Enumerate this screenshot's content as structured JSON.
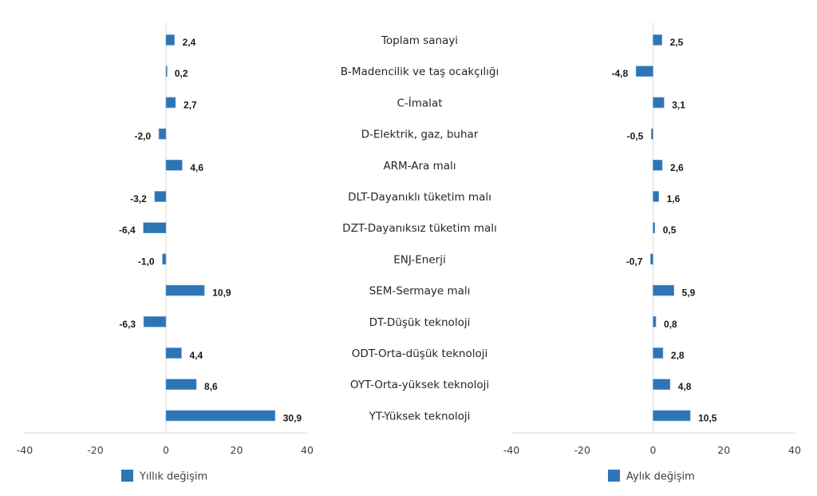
{
  "chart_data": [
    {
      "type": "bar",
      "orientation": "horizontal",
      "legend": "Yıllık değişim",
      "legend_position": "bottom",
      "categories": [
        "Toplam sanayi",
        "B-Madencilik ve taş ocakçılığı",
        "C-İmalat",
        "D-Elektrik, gaz, buhar",
        "ARM-Ara malı",
        "DLT-Dayanıklı tüketim malı",
        "DZT-Dayanıksız tüketim malı",
        "ENJ-Enerji",
        "SEM-Sermaye malı",
        "DT-Düşük teknoloji",
        "ODT-Orta-düşük teknoloji",
        "OYT-Orta-yüksek teknoloji",
        "YT-Yüksek teknoloji"
      ],
      "values": [
        2.4,
        0.2,
        2.7,
        -2.0,
        4.6,
        -3.2,
        -6.4,
        -1.0,
        10.9,
        -6.3,
        4.4,
        8.6,
        30.9
      ],
      "labels": [
        "2,4",
        "0,2",
        "2,7",
        "-2,0",
        "4,6",
        "-3,2",
        "-6,4",
        "-1,0",
        "10,9",
        "-6,3",
        "4,4",
        "8,6",
        "30,9"
      ],
      "xlim": [
        -40,
        40
      ],
      "ticks": [
        "-40",
        "-20",
        "0",
        "20",
        "40"
      ],
      "tick_values": [
        -40,
        -20,
        0,
        20,
        40
      ],
      "color": "#2e75b6",
      "grid": false
    },
    {
      "type": "bar",
      "orientation": "horizontal",
      "legend": "Aylık değişim",
      "legend_position": "bottom",
      "categories": [
        "Toplam sanayi",
        "B-Madencilik ve taş ocakçılığı",
        "C-İmalat",
        "D-Elektrik, gaz, buhar",
        "ARM-Ara malı",
        "DLT-Dayanıklı tüketim malı",
        "DZT-Dayanıksız tüketim malı",
        "ENJ-Enerji",
        "SEM-Sermaye malı",
        "DT-Düşük teknoloji",
        "ODT-Orta-düşük teknoloji",
        "OYT-Orta-yüksek teknoloji",
        "YT-Yüksek teknoloji"
      ],
      "values": [
        2.5,
        -4.8,
        3.1,
        -0.5,
        2.6,
        1.6,
        0.5,
        -0.7,
        5.9,
        0.8,
        2.8,
        4.8,
        10.5
      ],
      "labels": [
        "2,5",
        "-4,8",
        "3,1",
        "-0,5",
        "2,6",
        "1,6",
        "0,5",
        "-0,7",
        "5,9",
        "0,8",
        "2,8",
        "4,8",
        "10,5"
      ],
      "xlim": [
        -40,
        40
      ],
      "ticks": [
        "-40",
        "-20",
        "0",
        "20",
        "40"
      ],
      "tick_values": [
        -40,
        -20,
        0,
        20,
        40
      ],
      "color": "#2e75b6",
      "grid": false
    }
  ]
}
